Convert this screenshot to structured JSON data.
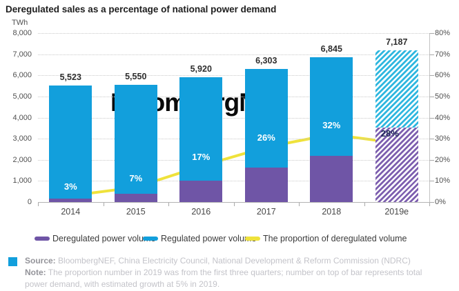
{
  "title": "Deregulated sales as a percentage of national power demand",
  "watermark": "BloombergNEF",
  "chart_data": {
    "type": "bar",
    "subtype": "stacked-bars-with-line-overlay",
    "categories": [
      "2014",
      "2015",
      "2016",
      "2017",
      "2018",
      "2019e"
    ],
    "totals": [
      5523,
      5550,
      5920,
      6303,
      6845,
      7187
    ],
    "total_labels": [
      "5,523",
      "5,550",
      "5,920",
      "6,303",
      "6,845",
      "7,187"
    ],
    "series": [
      {
        "name": "Deregulated power volume",
        "type": "bar",
        "color": "#6F55A6",
        "values": [
          166,
          389,
          1006,
          1639,
          2190,
          3530
        ]
      },
      {
        "name": "Regulated power volume",
        "type": "bar",
        "color": "#129FDC",
        "values": [
          5357,
          5161,
          4914,
          4664,
          4655,
          3657
        ]
      },
      {
        "name": "The proportion of deregulated volume",
        "type": "line",
        "axis": "right",
        "color": "#EFE23B",
        "values": [
          3,
          7,
          17,
          26,
          32,
          28
        ]
      }
    ],
    "pct_labels": [
      "3%",
      "7%",
      "17%",
      "26%",
      "32%",
      "28%"
    ],
    "left_axis": {
      "unit": "TWh",
      "min": 0,
      "max": 8000,
      "step": 1000,
      "tick_labels": [
        "0",
        "1,000",
        "2,000",
        "3,000",
        "4,000",
        "5,000",
        "6,000",
        "7,000",
        "8,000"
      ]
    },
    "right_axis": {
      "min": 0,
      "max": 80,
      "step": 10,
      "tick_labels": [
        "0%",
        "10%",
        "20%",
        "30%",
        "40%",
        "50%",
        "60%",
        "70%",
        "80%"
      ]
    },
    "estimated_index": 5,
    "grid": "horizontal-dotted",
    "legend_position": "bottom"
  },
  "legend": [
    {
      "label": "Deregulated power volume",
      "color": "#6F55A6"
    },
    {
      "label": "Regulated power volume",
      "color": "#129FDC"
    },
    {
      "label": "The proportion of deregulated volume",
      "color": "#EFE23B"
    }
  ],
  "footer": {
    "source_label": "Source:",
    "source_text": " BloombergNEF, China Electricity Council, National Development & Reform Commission (NDRC)",
    "note_label": "Note:",
    "note_text": " The proportion number in 2019 was from the first three quarters; number on top of bar represents total power demand, with estimated growth at 5% in 2019."
  }
}
